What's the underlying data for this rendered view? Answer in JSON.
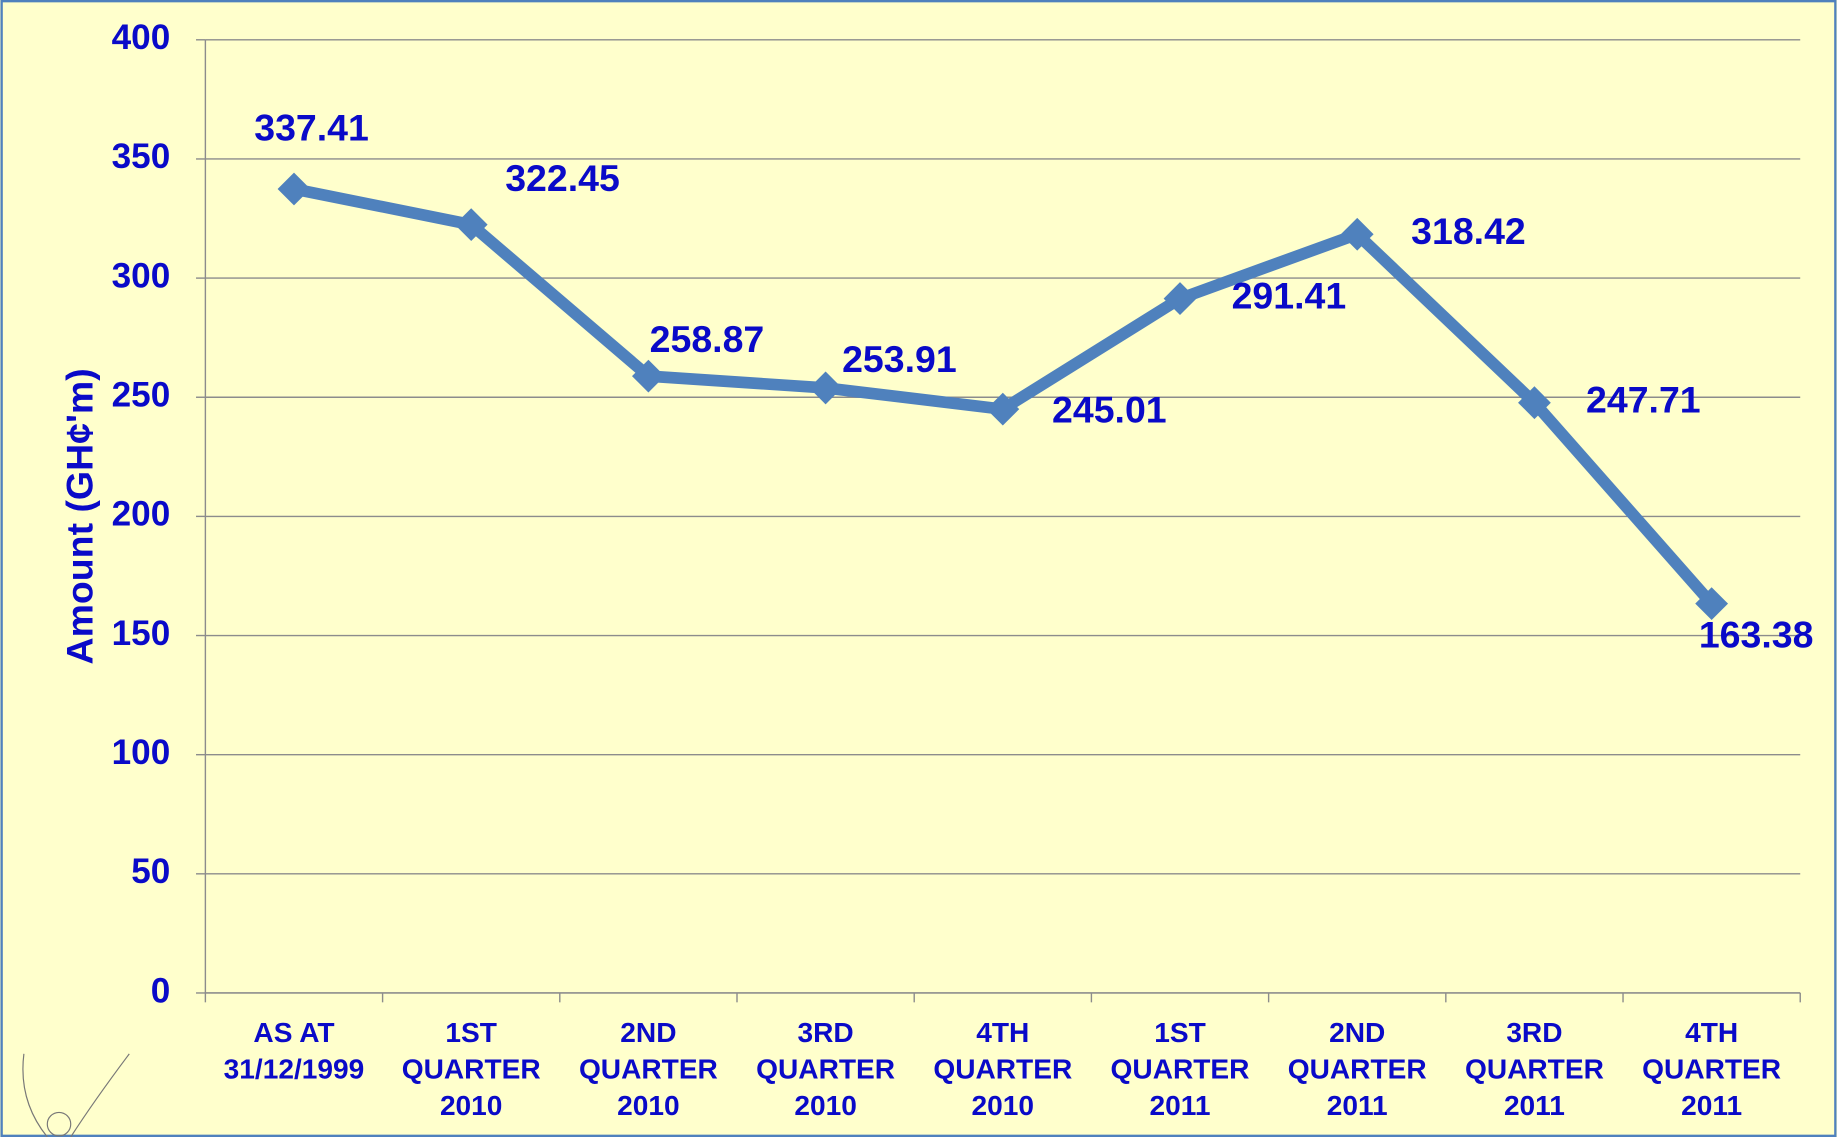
{
  "chart_data": {
    "type": "line",
    "y_label": "Amount (GH¢'m)",
    "categories": [
      "AS AT\n31/12/1999",
      "1ST\nQUARTER\n2010",
      "2ND\nQUARTER\n2010",
      "3RD\nQUARTER\n2010",
      "4TH\nQUARTER\n2010",
      "1ST\nQUARTER\n2011",
      "2ND\nQUARTER\n2011",
      "3RD\nQUARTER\n2011",
      "4TH\nQUARTER\n2011"
    ],
    "values": [
      337.41,
      322.45,
      258.87,
      253.91,
      245.01,
      291.41,
      318.42,
      247.71,
      163.38
    ],
    "color": "#4f81bd",
    "ylim": [
      0,
      400
    ],
    "yticks": [
      0,
      50,
      100,
      150,
      200,
      250,
      300,
      350,
      400
    ],
    "grid": true
  }
}
